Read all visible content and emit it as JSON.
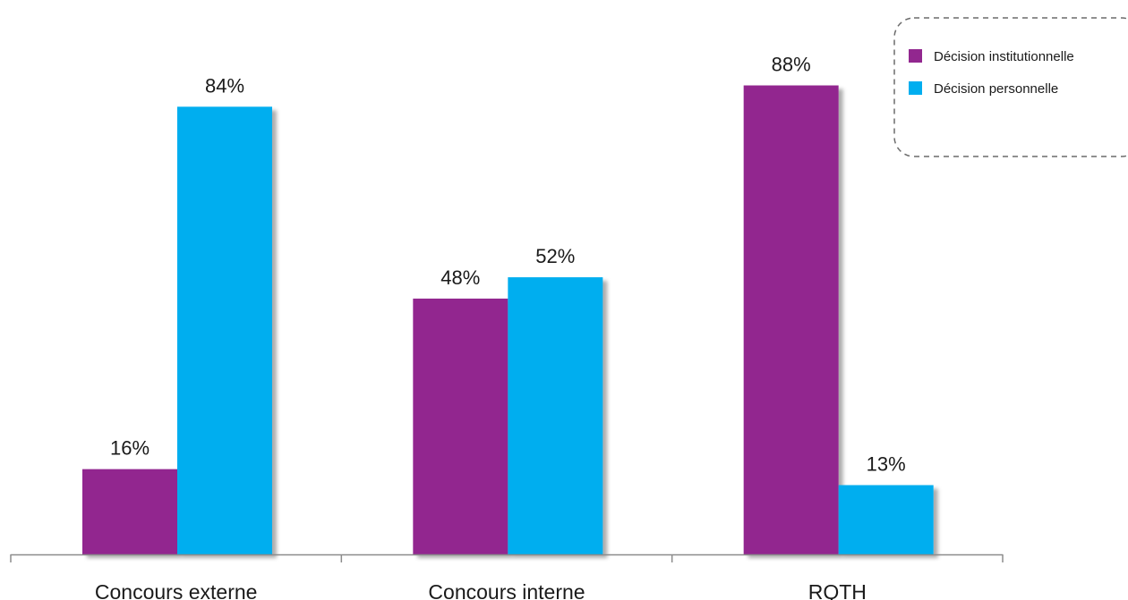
{
  "chart_data": {
    "type": "bar",
    "categories": [
      "Concours externe",
      "Concours interne",
      "RQTH"
    ],
    "series": [
      {
        "name": "Décision institutionnelle",
        "color": "#92278f",
        "values": [
          16,
          48,
          88
        ],
        "labels": [
          "16%",
          "48%",
          "88%"
        ]
      },
      {
        "name": "Décision personnelle",
        "color": "#00aeef",
        "values": [
          84,
          52,
          13
        ],
        "labels": [
          "84%",
          "52%",
          "13%"
        ]
      }
    ],
    "ylim": [
      0,
      100
    ],
    "grid": false,
    "legend": "top-right",
    "title": "",
    "xlabel": "",
    "ylabel": ""
  }
}
